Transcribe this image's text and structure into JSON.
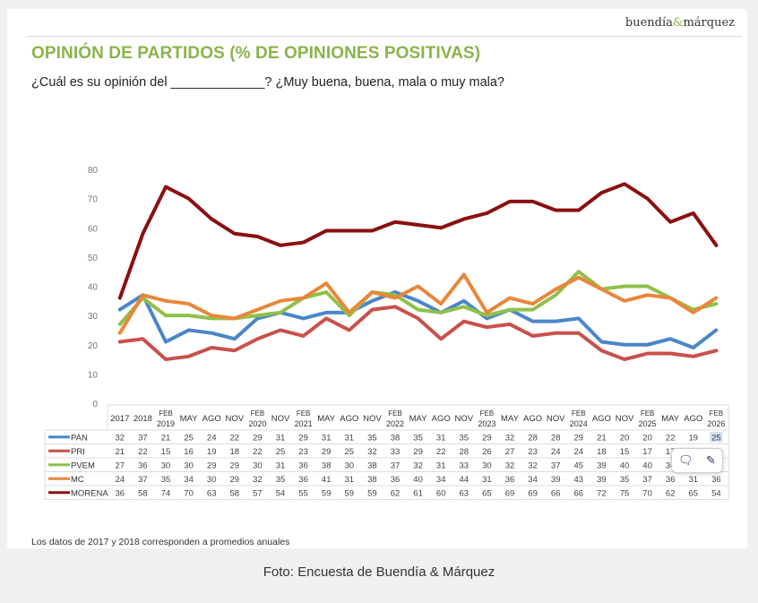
{
  "brand": {
    "left": "buendía",
    "amp": "&",
    "right": "márquez"
  },
  "header": {
    "title": "OPINIÓN DE PARTIDOS (% DE OPINIONES POSITIVAS)",
    "question": "¿Cuál es su opinión del _____________? ¿Muy buena, buena, mala o muy mala?"
  },
  "note": "Los datos de 2017 y 2018 corresponden a promedios anuales",
  "caption": "Foto: Encuesta de Buendía & Márquez",
  "popup": {
    "comment_icon": "comment-icon",
    "highlight_icon": "highlighter-icon",
    "selected_cell": "25"
  },
  "chart_data": {
    "type": "line",
    "title": "OPINIÓN DE PARTIDOS (% DE OPINIONES POSITIVAS)",
    "xlabel": "",
    "ylabel": "",
    "ylim": [
      0,
      80
    ],
    "yticks": [
      0,
      10,
      20,
      30,
      40,
      50,
      60,
      70,
      80
    ],
    "grid": false,
    "legend": "table-below",
    "categories": [
      "2017",
      "2018",
      "FEB 2019",
      "MAY",
      "AGO",
      "NOV",
      "FEB 2020",
      "NOV",
      "FEB 2021",
      "MAY",
      "AGO",
      "NOV",
      "FEB 2022",
      "MAY",
      "AGO",
      "NOV",
      "FEB 2023",
      "MAY",
      "AGO",
      "NOV",
      "FEB 2024",
      "AGO",
      "NOV",
      "FEB 2025",
      "MAY",
      "AGO",
      "FEB 2026"
    ],
    "series": [
      {
        "name": "PAN",
        "color": "#4a86c8",
        "values": [
          32,
          37,
          21,
          25,
          24,
          22,
          29,
          31,
          29,
          31,
          31,
          35,
          38,
          35,
          31,
          35,
          29,
          32,
          28,
          28,
          29,
          21,
          20,
          20,
          22,
          19,
          25
        ]
      },
      {
        "name": "PRI",
        "color": "#c9504b",
        "values": [
          21,
          22,
          15,
          16,
          19,
          18,
          22,
          25,
          23,
          29,
          25,
          32,
          33,
          29,
          22,
          28,
          26,
          27,
          23,
          24,
          24,
          18,
          15,
          17,
          17,
          16,
          18
        ]
      },
      {
        "name": "PVEM",
        "color": "#8fc14a",
        "values": [
          27,
          36,
          30,
          30,
          29,
          29,
          30,
          31,
          36,
          38,
          30,
          38,
          37,
          32,
          31,
          33,
          30,
          32,
          32,
          37,
          45,
          39,
          40,
          40,
          36,
          32,
          34
        ]
      },
      {
        "name": "MC",
        "color": "#e8873a",
        "values": [
          24,
          37,
          35,
          34,
          30,
          29,
          32,
          35,
          36,
          41,
          31,
          38,
          36,
          40,
          34,
          44,
          31,
          36,
          34,
          39,
          43,
          39,
          35,
          37,
          36,
          31,
          36
        ]
      },
      {
        "name": "MORENA",
        "color": "#8b0f10",
        "values": [
          36,
          58,
          74,
          70,
          63,
          58,
          57,
          54,
          55,
          59,
          59,
          59,
          62,
          61,
          60,
          63,
          65,
          69,
          69,
          66,
          66,
          72,
          75,
          70,
          62,
          65,
          54
        ]
      }
    ]
  }
}
